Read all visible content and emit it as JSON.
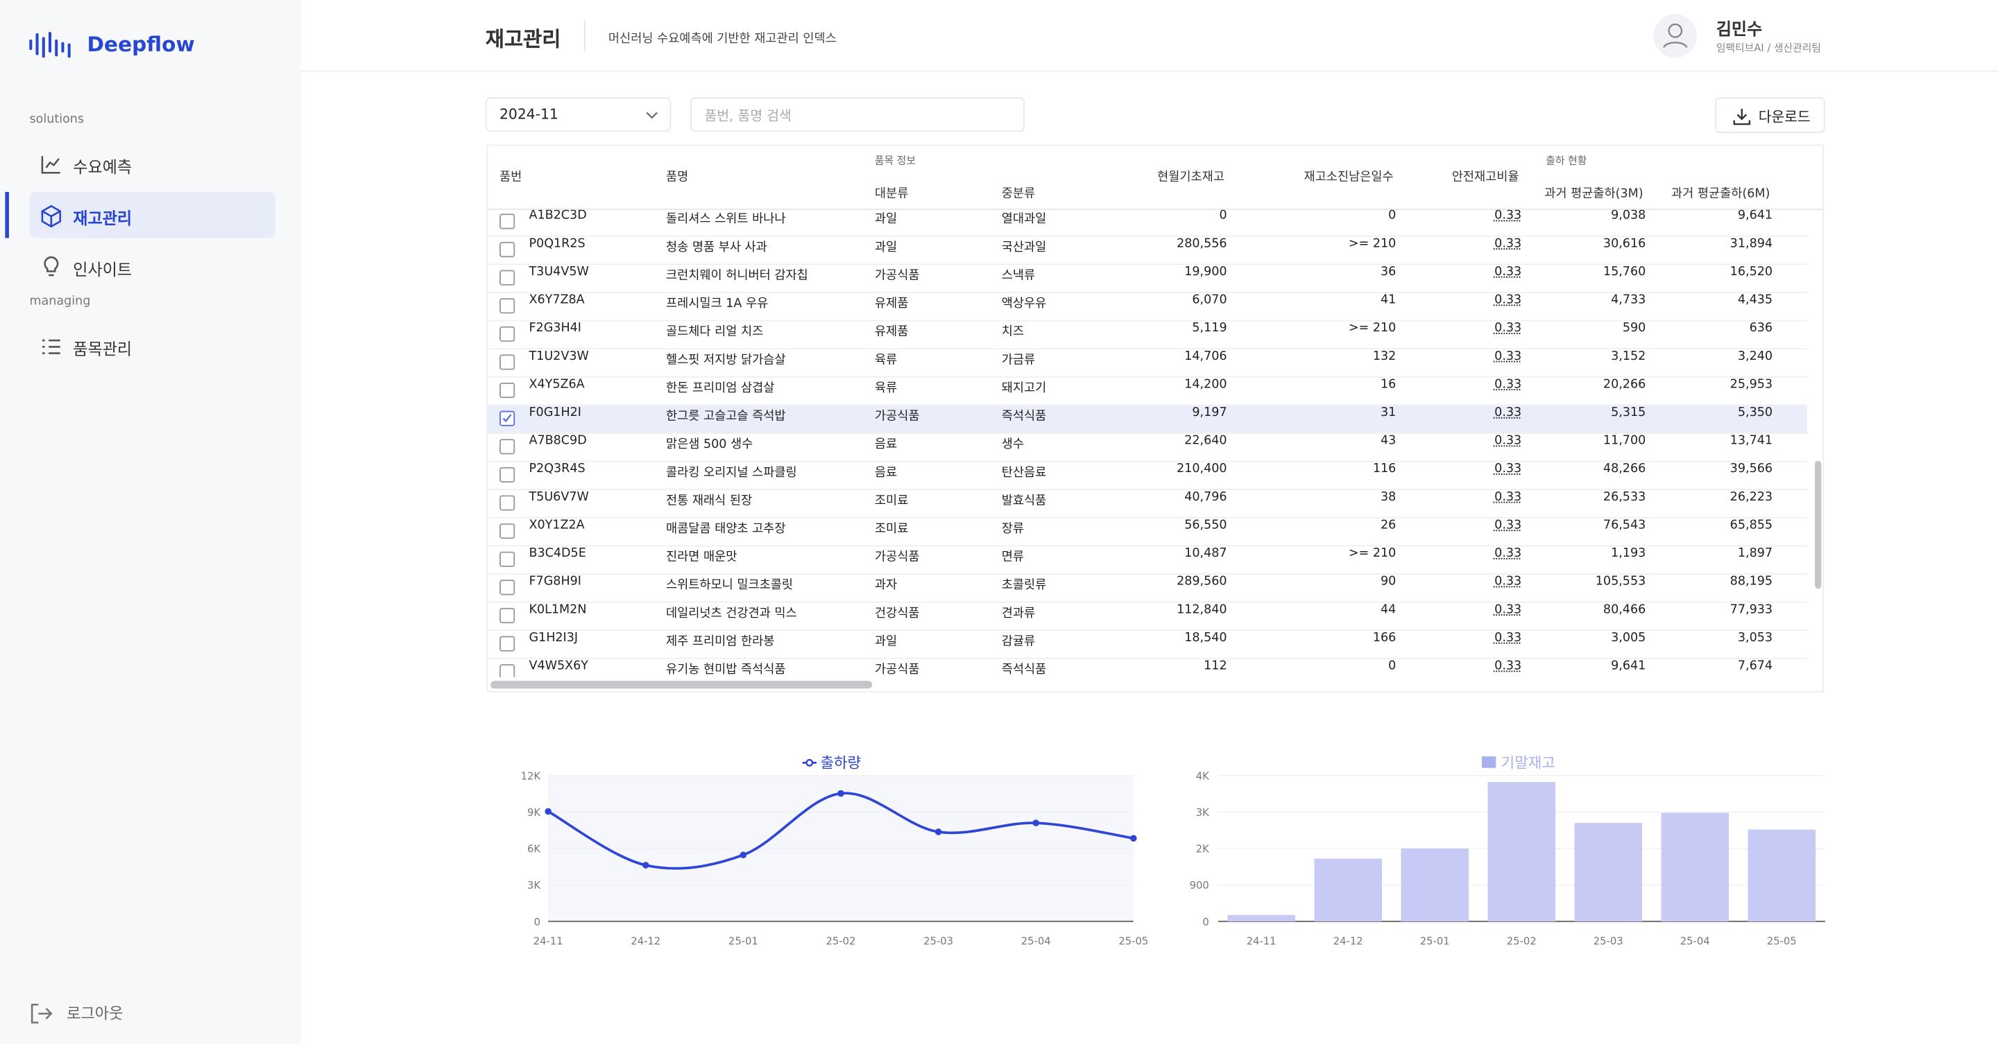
{
  "sidebar": {
    "logo": "Deepflow",
    "sections": [
      {
        "title": "solutions",
        "items": [
          {
            "label": "수요예측",
            "active": false
          },
          {
            "label": "재고관리",
            "active": true
          },
          {
            "label": "인사이트",
            "active": false
          }
        ]
      },
      {
        "title": "managing",
        "items": [
          {
            "label": "품목관리",
            "active": false
          }
        ]
      }
    ],
    "logout": "로그아웃"
  },
  "header": {
    "title": "재고관리",
    "subtitle": "머신러닝 수요예측에 기반한 재고관리 인덱스",
    "user": {
      "name": "김민수",
      "team": "임팩티브AI / 생산관리팀"
    }
  },
  "toolbar": {
    "month": "2024-11",
    "search_placeholder": "품번, 품명 검색",
    "download": "다운로드"
  },
  "table": {
    "group_headers": [
      "품목 정보",
      "출하 현황"
    ],
    "columns": [
      "품번",
      "품명",
      "대분류",
      "중분류",
      "현월기초재고",
      "재고소진남은일수",
      "안전재고비율",
      "과거 평균출하(3M)",
      "과거 평균출하(6M)"
    ],
    "rows": [
      {
        "checked": false,
        "cells": [
          "A1B2C3D",
          "돌리셔스 스위트 바나나",
          "과일",
          "열대과일",
          "0",
          "0",
          "0.33",
          "9,038",
          "9,641"
        ]
      },
      {
        "checked": false,
        "cells": [
          "P0Q1R2S",
          "청송 명품 부사 사과",
          "과일",
          "국산과일",
          "280,556",
          ">= 210",
          "0.33",
          "30,616",
          "31,894"
        ]
      },
      {
        "checked": false,
        "cells": [
          "T3U4V5W",
          "크런치웨이 허니버터 감자칩",
          "가공식품",
          "스낵류",
          "19,900",
          "36",
          "0.33",
          "15,760",
          "16,520"
        ]
      },
      {
        "checked": false,
        "cells": [
          "X6Y7Z8A",
          "프레시밀크 1A 우유",
          "유제품",
          "액상우유",
          "6,070",
          "41",
          "0.33",
          "4,733",
          "4,435"
        ]
      },
      {
        "checked": false,
        "cells": [
          "F2G3H4I",
          "골드체다 리얼 치즈",
          "유제품",
          "치즈",
          "5,119",
          ">= 210",
          "0.33",
          "590",
          "636"
        ]
      },
      {
        "checked": false,
        "cells": [
          "T1U2V3W",
          "헬스핏 저지방 닭가슴살",
          "육류",
          "가금류",
          "14,706",
          "132",
          "0.33",
          "3,152",
          "3,240"
        ]
      },
      {
        "checked": false,
        "cells": [
          "X4Y5Z6A",
          "한돈 프리미엄 삼겹살",
          "육류",
          "돼지고기",
          "14,200",
          "16",
          "0.33",
          "20,266",
          "25,953"
        ]
      },
      {
        "checked": true,
        "cells": [
          "F0G1H2I",
          "한그릇 고슬고슬 즉석밥",
          "가공식품",
          "즉석식품",
          "9,197",
          "31",
          "0.33",
          "5,315",
          "5,350"
        ]
      },
      {
        "checked": false,
        "cells": [
          "A7B8C9D",
          "맑은샘 500 생수",
          "음료",
          "생수",
          "22,640",
          "43",
          "0.33",
          "11,700",
          "13,741"
        ]
      },
      {
        "checked": false,
        "cells": [
          "P2Q3R4S",
          "콜라킹 오리지널 스파클링",
          "음료",
          "탄산음료",
          "210,400",
          "116",
          "0.33",
          "48,266",
          "39,566"
        ]
      },
      {
        "checked": false,
        "cells": [
          "T5U6V7W",
          "전통 재래식 된장",
          "조미료",
          "발효식품",
          "40,796",
          "38",
          "0.33",
          "26,533",
          "26,223"
        ]
      },
      {
        "checked": false,
        "cells": [
          "X0Y1Z2A",
          "매콤달콤 태양초 고추장",
          "조미료",
          "장류",
          "56,550",
          "26",
          "0.33",
          "76,543",
          "65,855"
        ]
      },
      {
        "checked": false,
        "cells": [
          "B3C4D5E",
          "진라면 매운맛",
          "가공식품",
          "면류",
          "10,487",
          ">= 210",
          "0.33",
          "1,193",
          "1,897"
        ]
      },
      {
        "checked": false,
        "cells": [
          "F7G8H9I",
          "스위트하모니 밀크초콜릿",
          "과자",
          "초콜릿류",
          "289,560",
          "90",
          "0.33",
          "105,553",
          "88,195"
        ]
      },
      {
        "checked": false,
        "cells": [
          "K0L1M2N",
          "데일리넛츠 건강견과 믹스",
          "건강식품",
          "견과류",
          "112,840",
          "44",
          "0.33",
          "80,466",
          "77,933"
        ]
      },
      {
        "checked": false,
        "cells": [
          "G1H2I3J",
          "제주 프리미엄 한라봉",
          "과일",
          "감귤류",
          "18,540",
          "166",
          "0.33",
          "3,005",
          "3,053"
        ]
      },
      {
        "checked": false,
        "cells": [
          "V4W5X6Y",
          "유기농 현미밥 즉석식품",
          "가공식품",
          "즉석식품",
          "112",
          "0",
          "0.33",
          "9,641",
          "7,674"
        ]
      }
    ]
  },
  "charts": [
    {
      "type": "line",
      "legend": "top",
      "categories": [
        "24-11",
        "24-12",
        "25-01",
        "25-02",
        "25-03",
        "25-04",
        "25-05"
      ],
      "series": [
        {
          "name": "출하량",
          "color": "#2f46d4",
          "values": [
            9050,
            4630,
            5470,
            10530,
            7370,
            8100,
            6840
          ]
        }
      ],
      "ylim": [
        0,
        12000
      ],
      "yticks": [
        0,
        {
          "value": 3000,
          "label": "3K"
        },
        {
          "value": 6000,
          "label": "6K"
        },
        {
          "value": 9000,
          "label": "9K"
        },
        {
          "value": 12000,
          "label": "12K"
        }
      ]
    },
    {
      "type": "bar",
      "legend": "top",
      "categories": [
        "24-11",
        "24-12",
        "25-01",
        "25-02",
        "25-03",
        "25-04",
        "25-05"
      ],
      "series": [
        {
          "name": "기말재고",
          "color": "#c6caf5",
          "values": [
            160,
            1550,
            1800,
            3440,
            2430,
            2680,
            2270
          ]
        }
      ],
      "ylim": [
        0,
        3600
      ],
      "yticks": [
        0,
        900,
        {
          "value": 1800,
          "label": "2K"
        },
        {
          "value": 2700,
          "label": "3K"
        },
        {
          "value": 3600,
          "label": "4K"
        }
      ]
    }
  ]
}
